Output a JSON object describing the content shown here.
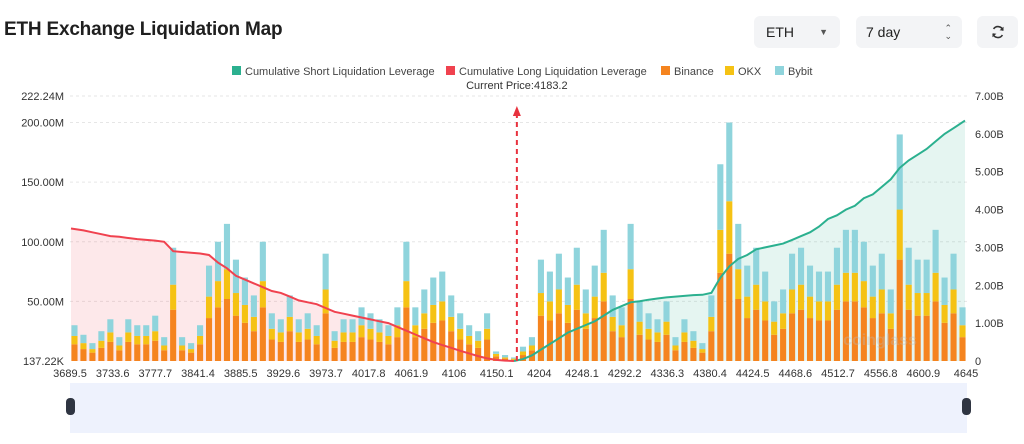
{
  "header": {
    "title": "ETH Exchange Liquidation Map",
    "symbol_select": "ETH",
    "period_select": "7 day",
    "refresh_icon": "refresh-icon"
  },
  "watermark": "coinglass",
  "colors": {
    "short_line": "#2bb08f",
    "long_line": "#f0424f",
    "binance": "#f5841f",
    "okx": "#f5c214",
    "bybit": "#8fd4dc",
    "current_price_marker": "#e8323e",
    "slider_bg": "#eef2fd"
  },
  "chart_data": {
    "type": "bar",
    "stacked": true,
    "legend_position": "top",
    "grid": true,
    "current_price_label": "Current Price:4183.2",
    "current_price": 4183.2,
    "legend": [
      {
        "name": "Cumulative Short Liquidation Leverage",
        "color": "#2bb08f"
      },
      {
        "name": "Cumulative Long Liquidation Leverage",
        "color": "#f0424f"
      },
      {
        "name": "Binance",
        "color": "#f5841f"
      },
      {
        "name": "OKX",
        "color": "#f5c214"
      },
      {
        "name": "Bybit",
        "color": "#8fd4dc"
      }
    ],
    "x_tick_labels": [
      "3689.5",
      "3733.6",
      "3777.7",
      "3841.4",
      "3885.5",
      "3929.6",
      "3973.7",
      "4017.8",
      "4061.9",
      "4106",
      "4150.1",
      "4204",
      "4248.1",
      "4292.2",
      "4336.3",
      "4380.4",
      "4424.5",
      "4468.6",
      "4512.7",
      "4556.8",
      "4600.9",
      "4645"
    ],
    "y_left": {
      "unit": "M",
      "range": [
        0.13722,
        222.24
      ],
      "tick_labels": [
        "222.24M",
        "200.00M",
        "150.00M",
        "100.00M",
        "50.00M",
        "137.22K"
      ],
      "tick_values": [
        222.24,
        200,
        150,
        100,
        50,
        0
      ]
    },
    "y_right": {
      "unit": "B",
      "range": [
        0,
        7
      ],
      "tick_labels": [
        "7.00B",
        "6.00B",
        "5.00B",
        "4.00B",
        "3.00B",
        "2.00B",
        "1.00B",
        "0"
      ],
      "tick_values": [
        7,
        6,
        5,
        4,
        3,
        2,
        1,
        0
      ]
    },
    "price_range": [
      3689.5,
      4645
    ],
    "series": [
      {
        "name": "Binance",
        "axis": "left",
        "values": [
          14,
          10,
          7,
          11,
          16,
          9,
          16,
          14,
          14,
          17,
          9,
          43,
          9,
          7,
          14,
          36,
          45,
          52,
          38,
          32,
          25,
          45,
          18,
          16,
          25,
          16,
          18,
          14,
          40,
          11,
          16,
          16,
          20,
          18,
          16,
          14,
          20,
          45,
          20,
          27,
          32,
          34,
          25,
          18,
          14,
          11,
          18,
          4,
          2,
          1,
          5,
          9,
          38,
          34,
          40,
          32,
          43,
          27,
          36,
          50,
          25,
          20,
          52,
          22,
          18,
          16,
          22,
          9,
          16,
          11,
          7,
          25,
          74,
          90,
          52,
          36,
          43,
          34,
          22,
          27,
          40,
          43,
          36,
          34,
          34,
          43,
          50,
          50,
          45,
          36,
          40,
          27,
          85,
          43,
          38,
          38,
          50,
          32,
          40,
          20
        ]
      },
      {
        "name": "OKX",
        "axis": "left",
        "values": [
          7,
          5,
          3,
          6,
          8,
          4,
          8,
          7,
          7,
          8,
          4,
          21,
          4,
          3,
          7,
          18,
          22,
          25,
          19,
          15,
          12,
          22,
          9,
          8,
          12,
          8,
          9,
          7,
          20,
          6,
          8,
          8,
          10,
          9,
          8,
          7,
          10,
          22,
          10,
          13,
          15,
          16,
          12,
          9,
          7,
          6,
          9,
          2,
          1,
          1,
          3,
          4,
          19,
          16,
          20,
          15,
          21,
          13,
          18,
          24,
          12,
          10,
          25,
          11,
          9,
          8,
          11,
          4,
          8,
          6,
          3,
          12,
          36,
          44,
          25,
          18,
          21,
          16,
          11,
          13,
          20,
          21,
          18,
          16,
          16,
          21,
          24,
          24,
          22,
          18,
          20,
          13,
          42,
          21,
          19,
          19,
          24,
          15,
          20,
          10
        ]
      },
      {
        "name": "Bybit",
        "axis": "left",
        "values": [
          9,
          7,
          5,
          8,
          11,
          7,
          11,
          9,
          9,
          13,
          7,
          31,
          7,
          5,
          9,
          26,
          33,
          38,
          28,
          23,
          18,
          33,
          13,
          11,
          18,
          11,
          13,
          9,
          30,
          8,
          11,
          11,
          15,
          13,
          11,
          9,
          15,
          33,
          15,
          20,
          23,
          25,
          18,
          13,
          9,
          8,
          13,
          2,
          2,
          1,
          4,
          7,
          28,
          25,
          30,
          23,
          31,
          20,
          26,
          36,
          18,
          15,
          38,
          17,
          13,
          11,
          17,
          7,
          11,
          8,
          5,
          18,
          55,
          66,
          38,
          26,
          31,
          25,
          17,
          20,
          30,
          31,
          26,
          25,
          25,
          31,
          36,
          36,
          33,
          26,
          30,
          20,
          63,
          31,
          28,
          28,
          36,
          23,
          30,
          15
        ]
      },
      {
        "name": "Cumulative Long Liquidation Leverage",
        "axis": "right",
        "type": "area",
        "values": [
          3.5,
          3.45,
          3.4,
          3.35,
          3.3,
          3.28,
          3.25,
          3.22,
          3.2,
          3.18,
          3.15,
          2.9,
          2.88,
          2.86,
          2.84,
          2.8,
          2.6,
          2.45,
          2.25,
          2.15,
          2.05,
          1.95,
          1.85,
          1.8,
          1.7,
          1.6,
          1.55,
          1.5,
          1.4,
          1.3,
          1.25,
          1.2,
          1.15,
          1.1,
          1.05,
          1.0,
          0.9,
          0.8,
          0.7,
          0.6,
          0.5,
          0.42,
          0.35,
          0.27,
          0.2,
          0.13,
          0.07,
          0.03,
          0.01,
          0,
          null,
          null,
          null,
          null,
          null,
          null,
          null,
          null,
          null,
          null,
          null,
          null,
          null,
          null,
          null,
          null,
          null,
          null,
          null,
          null,
          null,
          null,
          null,
          null,
          null,
          null,
          null,
          null,
          null,
          null,
          null,
          null,
          null,
          null,
          null,
          null,
          null,
          null,
          null,
          null,
          null,
          null,
          null,
          null,
          null,
          null,
          null,
          null,
          null,
          null
        ]
      },
      {
        "name": "Cumulative Short Liquidation Leverage",
        "axis": "right",
        "type": "area",
        "values": [
          null,
          null,
          null,
          null,
          null,
          null,
          null,
          null,
          null,
          null,
          null,
          null,
          null,
          null,
          null,
          null,
          null,
          null,
          null,
          null,
          null,
          null,
          null,
          null,
          null,
          null,
          null,
          null,
          null,
          null,
          null,
          null,
          null,
          null,
          null,
          null,
          null,
          null,
          null,
          null,
          null,
          null,
          null,
          null,
          null,
          null,
          null,
          null,
          null,
          0,
          0.05,
          0.15,
          0.3,
          0.45,
          0.6,
          0.75,
          0.85,
          0.95,
          1.05,
          1.2,
          1.35,
          1.45,
          1.55,
          1.58,
          1.62,
          1.65,
          1.68,
          1.7,
          1.72,
          1.74,
          1.75,
          1.8,
          2.2,
          2.5,
          2.7,
          2.8,
          2.95,
          3.0,
          3.05,
          3.1,
          3.2,
          3.3,
          3.4,
          3.55,
          3.75,
          3.85,
          4.0,
          4.1,
          4.3,
          4.4,
          4.6,
          4.8,
          5.1,
          5.3,
          5.45,
          5.6,
          5.8,
          6.0,
          6.15,
          6.35
        ]
      }
    ]
  }
}
